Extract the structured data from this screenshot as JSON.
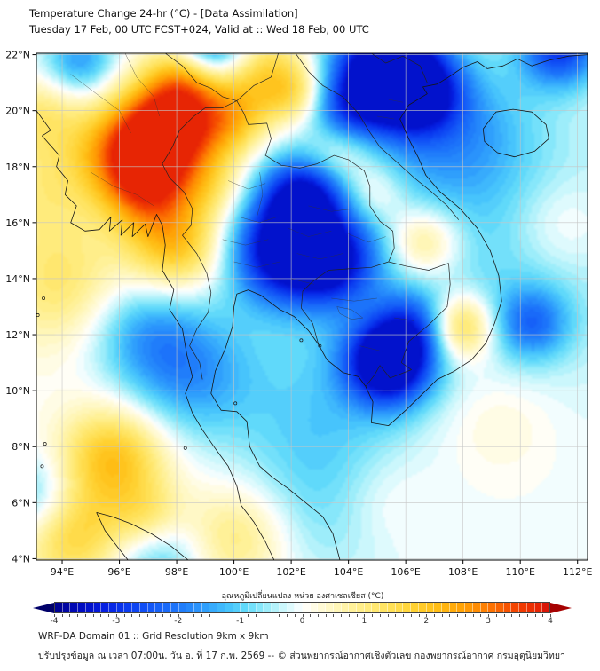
{
  "header": {
    "title": "Temperature Change 24-hr (°C) - [Data Assimilation]",
    "subtitle": "Tuesday 17 Feb, 00 UTC FCST+024, Valid at :: Wed 18 Feb, 00 UTC"
  },
  "map": {
    "lat_ticks": [
      "22°N",
      "20°N",
      "18°N",
      "16°N",
      "14°N",
      "12°N",
      "10°N",
      "8°N",
      "6°N",
      "4°N"
    ],
    "lon_ticks": [
      "94°E",
      "96°E",
      "98°E",
      "100°E",
      "102°E",
      "104°E",
      "106°E",
      "108°E",
      "110°E",
      "112°E"
    ]
  },
  "colorbar": {
    "label": "อุณหภูมิเปลี่ยนแปลง หน่วย องศาเซลเซียส (°C)",
    "ticks": [
      "-4",
      "-3",
      "-2",
      "-1",
      "0",
      "1",
      "2",
      "3",
      "4"
    ]
  },
  "footer": {
    "line1": "WRF-DA Domain 01 :: Grid Resolution 9km x 9km",
    "line2": "ปรับปรุงข้อมูล ณ เวลา 07:00น. วัน อ. ที่ 17 ก.พ. 2569 -- © ส่วนพยากรณ์อากาศเชิงตัวเลข กองพยากรณ์อากาศ กรมอุตุนิยมวิทยา"
  },
  "chart_data": {
    "type": "heatmap",
    "title": "Temperature Change 24-hr (°C) - [Data Assimilation]",
    "xlabel": "",
    "ylabel": "",
    "lon_range": [
      93.1,
      112.35
    ],
    "lat_range": [
      3.95,
      22.05
    ],
    "lon_tick_values": [
      94,
      96,
      98,
      100,
      102,
      104,
      106,
      108,
      110,
      112
    ],
    "lat_tick_values": [
      22,
      20,
      18,
      16,
      14,
      12,
      10,
      8,
      6,
      4
    ],
    "value_range": [
      -4,
      4
    ],
    "contour_interval": 0.125,
    "clamp_range": [
      -3.45,
      3.85
    ],
    "grid": true,
    "legend_position": "bottom",
    "color_stops": [
      [
        -4.4,
        "#000064"
      ],
      [
        -4.0,
        "#00008c"
      ],
      [
        -3.6,
        "#000abe"
      ],
      [
        -3.2,
        "#051ee1"
      ],
      [
        -2.8,
        "#0a3cf0"
      ],
      [
        -2.4,
        "#145af8"
      ],
      [
        -2.0,
        "#1e78fa"
      ],
      [
        -1.6,
        "#2d9bfc"
      ],
      [
        -1.2,
        "#46c3fc"
      ],
      [
        -0.9,
        "#64dcfa"
      ],
      [
        -0.6,
        "#96ebfa"
      ],
      [
        -0.3,
        "#cdf8fc"
      ],
      [
        -0.1,
        "#ebfcfd"
      ],
      [
        0.0,
        "#ffffff"
      ],
      [
        0.1,
        "#fffdf0"
      ],
      [
        0.3,
        "#fffad7"
      ],
      [
        0.6,
        "#fff5b2"
      ],
      [
        1.0,
        "#ffed82"
      ],
      [
        1.4,
        "#ffe15a"
      ],
      [
        1.8,
        "#ffd232"
      ],
      [
        2.2,
        "#ffbc14"
      ],
      [
        2.6,
        "#ffa005"
      ],
      [
        3.0,
        "#fd7a02"
      ],
      [
        3.4,
        "#f54800"
      ],
      [
        3.8,
        "#e82604"
      ],
      [
        4.0,
        "#d21008"
      ],
      [
        4.4,
        "#a00000"
      ]
    ],
    "anomaly_centers": [
      {
        "lon": 97.6,
        "lat": 19.3,
        "dT": 4.5,
        "sigma": 1.25
      },
      {
        "lon": 96.9,
        "lat": 17.3,
        "dT": 2.8,
        "sigma": 1.1
      },
      {
        "lon": 98.3,
        "lat": 21.2,
        "dT": 1.8,
        "sigma": 0.9
      },
      {
        "lon": 95.7,
        "lat": 18.6,
        "dT": 1.5,
        "sigma": 1.1
      },
      {
        "lon": 98.0,
        "lat": 15.2,
        "dT": 2.2,
        "sigma": 1.2
      },
      {
        "lon": 99.9,
        "lat": 19.7,
        "dT": 1.8,
        "sigma": 1.0
      },
      {
        "lon": 99.3,
        "lat": 17.3,
        "dT": 1.0,
        "sigma": 0.9
      },
      {
        "lon": 101.1,
        "lat": 21.4,
        "dT": 1.5,
        "sigma": 1.1
      },
      {
        "lon": 102.2,
        "lat": 20.6,
        "dT": 1.3,
        "sigma": 0.8
      },
      {
        "lon": 103.7,
        "lat": 18.6,
        "dT": 1.4,
        "sigma": 0.9
      },
      {
        "lon": 104.9,
        "lat": 17.0,
        "dT": 1.1,
        "sigma": 0.8
      },
      {
        "lon": 106.6,
        "lat": 15.3,
        "dT": 1.7,
        "sigma": 0.95
      },
      {
        "lon": 107.9,
        "lat": 12.3,
        "dT": 2.2,
        "sigma": 0.85
      },
      {
        "lon": 94.0,
        "lat": 13.8,
        "dT": 1.2,
        "sigma": 1.6
      },
      {
        "lon": 93.3,
        "lat": 17.3,
        "dT": 0.9,
        "sigma": 1.4
      },
      {
        "lon": 93.3,
        "lat": 19.9,
        "dT": 1.0,
        "sigma": 1.0
      },
      {
        "lon": 95.8,
        "lat": 7.6,
        "dT": 2.1,
        "sigma": 1.3
      },
      {
        "lon": 94.3,
        "lat": 4.9,
        "dT": 1.8,
        "sigma": 1.3
      },
      {
        "lon": 97.0,
        "lat": 5.4,
        "dT": 1.1,
        "sigma": 0.9
      },
      {
        "lon": 100.1,
        "lat": 4.8,
        "dT": 1.1,
        "sigma": 1.3
      },
      {
        "lon": 109.2,
        "lat": 9.0,
        "dT": 0.5,
        "sigma": 1.5
      },
      {
        "lon": 105.1,
        "lat": 6.1,
        "dT": 0.5,
        "sigma": 1.3
      },
      {
        "lon": 111.4,
        "lat": 15.9,
        "dT": 0.6,
        "sigma": 1.2
      },
      {
        "lon": 105.3,
        "lat": 21.5,
        "dT": -4.3,
        "sigma": 1.35
      },
      {
        "lon": 106.5,
        "lat": 20.6,
        "dT": -2.2,
        "sigma": 1.0
      },
      {
        "lon": 103.9,
        "lat": 19.9,
        "dT": -1.8,
        "sigma": 0.95
      },
      {
        "lon": 99.2,
        "lat": 22.3,
        "dT": -2.4,
        "sigma": 0.9
      },
      {
        "lon": 102.4,
        "lat": 16.9,
        "dT": -2.6,
        "sigma": 1.0
      },
      {
        "lon": 101.6,
        "lat": 14.9,
        "dT": -2.8,
        "sigma": 1.2
      },
      {
        "lon": 103.4,
        "lat": 14.6,
        "dT": -2.4,
        "sigma": 1.05
      },
      {
        "lon": 102.6,
        "lat": 15.8,
        "dT": -1.2,
        "sigma": 2.2
      },
      {
        "lon": 105.4,
        "lat": 11.0,
        "dT": -4.2,
        "sigma": 1.05
      },
      {
        "lon": 106.3,
        "lat": 12.3,
        "dT": -1.6,
        "sigma": 0.9
      },
      {
        "lon": 98.4,
        "lat": 10.6,
        "dT": -1.5,
        "sigma": 1.6
      },
      {
        "lon": 96.8,
        "lat": 12.2,
        "dT": -1.2,
        "sigma": 1.4
      },
      {
        "lon": 94.6,
        "lat": 21.8,
        "dT": -1.6,
        "sigma": 0.9
      },
      {
        "lon": 93.1,
        "lat": 6.1,
        "dT": -1.3,
        "sigma": 1.1
      },
      {
        "lon": 111.4,
        "lat": 22.3,
        "dT": -2.8,
        "sigma": 1.0
      },
      {
        "lon": 110.4,
        "lat": 12.4,
        "dT": -1.7,
        "sigma": 0.9
      },
      {
        "lon": 108.5,
        "lat": 15.0,
        "dT": -0.9,
        "sigma": 4.0
      },
      {
        "lon": 102.8,
        "lat": 8.8,
        "dT": -0.9,
        "sigma": 2.2
      },
      {
        "lon": 107.8,
        "lat": 19.3,
        "dT": -1.2,
        "sigma": 1.8
      },
      {
        "lon": 97.3,
        "lat": 4.1,
        "dT": -1.2,
        "sigma": 1.1
      },
      {
        "lon": 103.5,
        "lat": 5.5,
        "dT": -0.6,
        "sigma": 1.8
      }
    ]
  }
}
